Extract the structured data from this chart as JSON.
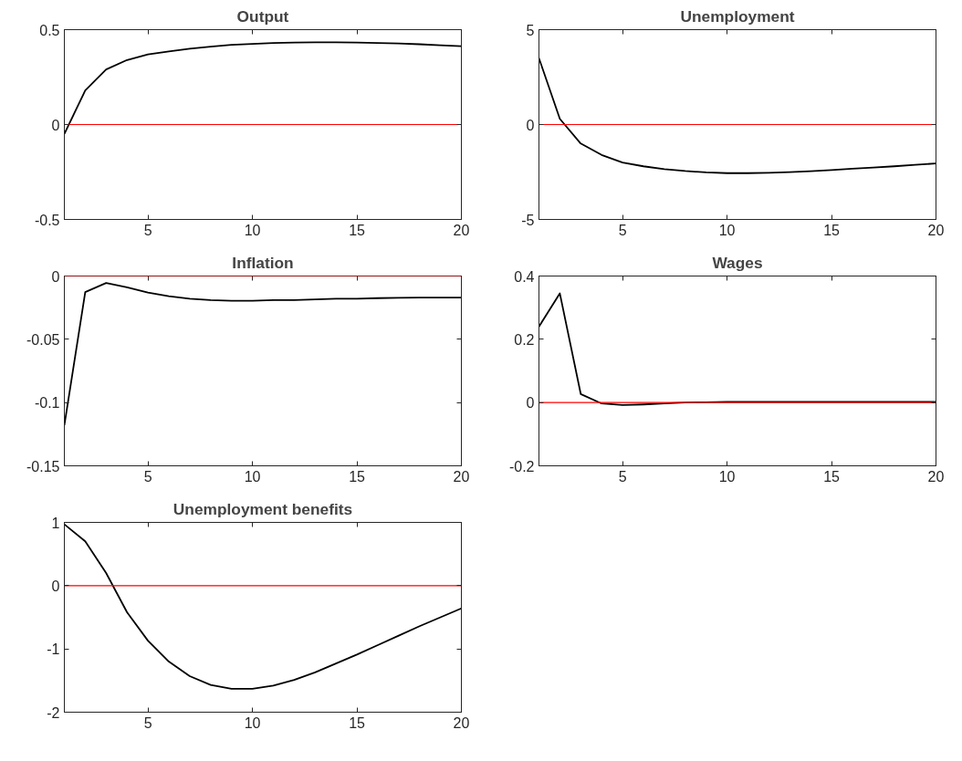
{
  "chart_data": [
    {
      "type": "line",
      "title": "Output",
      "x": [
        1,
        2,
        3,
        4,
        5,
        6,
        7,
        8,
        9,
        10,
        11,
        12,
        13,
        14,
        15,
        16,
        17,
        18,
        19,
        20
      ],
      "xlim": [
        1,
        20
      ],
      "xticks": [
        5,
        10,
        15,
        20
      ],
      "ylim": [
        -0.5,
        0.5
      ],
      "yticks": [
        -0.5,
        0,
        0.5
      ],
      "series": [
        {
          "color": "#000000",
          "values": [
            -0.05,
            0.18,
            0.29,
            0.34,
            0.37,
            0.385,
            0.4,
            0.41,
            0.42,
            0.425,
            0.43,
            0.432,
            0.433,
            0.433,
            0.432,
            0.43,
            0.427,
            0.423,
            0.418,
            0.413
          ]
        }
      ],
      "ref_lines": [
        {
          "axis": "y",
          "value": 0,
          "color": "#ff0000"
        }
      ]
    },
    {
      "type": "line",
      "title": "Unemployment",
      "x": [
        1,
        2,
        3,
        4,
        5,
        6,
        7,
        8,
        9,
        10,
        11,
        12,
        13,
        14,
        15,
        16,
        17,
        18,
        19,
        20
      ],
      "xlim": [
        1,
        20
      ],
      "xticks": [
        5,
        10,
        15,
        20
      ],
      "ylim": [
        -5,
        5
      ],
      "yticks": [
        -5,
        0,
        5
      ],
      "series": [
        {
          "color": "#000000",
          "values": [
            3.5,
            0.3,
            -1.0,
            -1.6,
            -2.0,
            -2.2,
            -2.35,
            -2.45,
            -2.52,
            -2.56,
            -2.56,
            -2.54,
            -2.51,
            -2.46,
            -2.4,
            -2.33,
            -2.27,
            -2.2,
            -2.12,
            -2.05
          ]
        }
      ],
      "ref_lines": [
        {
          "axis": "y",
          "value": 0,
          "color": "#ff0000"
        }
      ]
    },
    {
      "type": "line",
      "title": "Inflation",
      "x": [
        1,
        2,
        3,
        4,
        5,
        6,
        7,
        8,
        9,
        10,
        11,
        12,
        13,
        14,
        15,
        16,
        17,
        18,
        19,
        20
      ],
      "xlim": [
        1,
        20
      ],
      "xticks": [
        5,
        10,
        15,
        20
      ],
      "ylim": [
        -0.15,
        0
      ],
      "yticks": [
        -0.15,
        -0.1,
        -0.05,
        0
      ],
      "series": [
        {
          "color": "#000000",
          "values": [
            -0.118,
            -0.0127,
            -0.0055,
            -0.009,
            -0.013,
            -0.016,
            -0.018,
            -0.019,
            -0.0195,
            -0.0195,
            -0.019,
            -0.019,
            -0.0185,
            -0.018,
            -0.018,
            -0.0175,
            -0.0172,
            -0.017,
            -0.017,
            -0.017
          ]
        }
      ],
      "ref_lines": [
        {
          "axis": "y",
          "value": 0,
          "color": "#ff0000"
        }
      ]
    },
    {
      "type": "line",
      "title": "Wages",
      "x": [
        1,
        2,
        3,
        4,
        5,
        6,
        7,
        8,
        9,
        10,
        11,
        12,
        13,
        14,
        15,
        16,
        17,
        18,
        19,
        20
      ],
      "xlim": [
        1,
        20
      ],
      "xticks": [
        5,
        10,
        15,
        20
      ],
      "ylim": [
        -0.2,
        0.4
      ],
      "yticks": [
        -0.2,
        0,
        0.2,
        0.4
      ],
      "series": [
        {
          "color": "#000000",
          "values": [
            0.24,
            0.345,
            0.027,
            -0.003,
            -0.008,
            -0.006,
            -0.003,
            0,
            0.001,
            0.002,
            0.002,
            0.002,
            0.002,
            0.002,
            0.002,
            0.002,
            0.002,
            0.002,
            0.002,
            0.002
          ]
        }
      ],
      "ref_lines": [
        {
          "axis": "y",
          "value": 0,
          "color": "#ff0000"
        }
      ]
    },
    {
      "type": "line",
      "title": "Unemployment benefits",
      "x": [
        1,
        2,
        3,
        4,
        5,
        6,
        7,
        8,
        9,
        10,
        11,
        12,
        13,
        14,
        15,
        16,
        17,
        18,
        19,
        20
      ],
      "xlim": [
        1,
        20
      ],
      "xticks": [
        5,
        10,
        15,
        20
      ],
      "ylim": [
        -2,
        1
      ],
      "yticks": [
        -2,
        -1,
        0,
        1
      ],
      "series": [
        {
          "color": "#000000",
          "values": [
            0.97,
            0.7,
            0.2,
            -0.42,
            -0.87,
            -1.2,
            -1.43,
            -1.57,
            -1.63,
            -1.63,
            -1.58,
            -1.49,
            -1.37,
            -1.23,
            -1.09,
            -0.94,
            -0.79,
            -0.64,
            -0.5,
            -0.36
          ]
        }
      ],
      "ref_lines": [
        {
          "axis": "y",
          "value": 0,
          "color": "#ff0000"
        }
      ]
    }
  ]
}
